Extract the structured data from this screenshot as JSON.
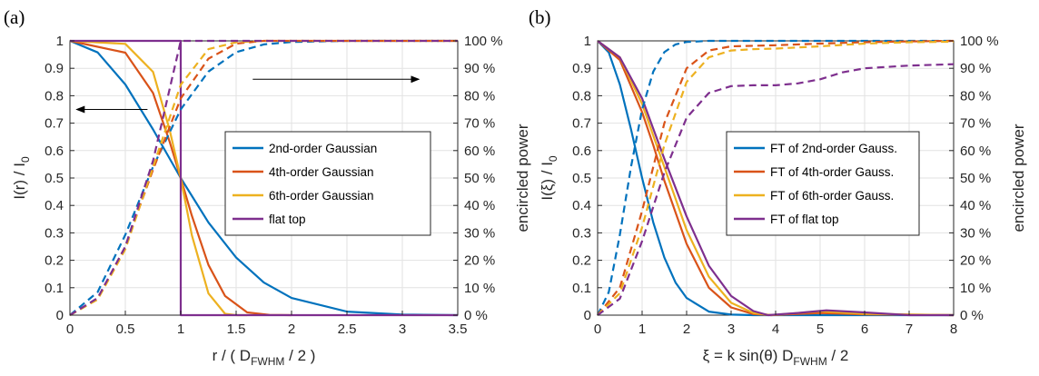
{
  "chart_data": [
    {
      "panel_label": "(a)",
      "type": "line",
      "xlabel": "r / ( D",
      "xlabel_sub": "FWHM",
      "xlabel_tail": " / 2 )",
      "ylabel": "I(r) / I",
      "ylabel_sub": "0",
      "y2label": "encircled power",
      "xlim": [
        0,
        3.5
      ],
      "ylim": [
        0,
        1
      ],
      "y2lim": [
        0,
        100
      ],
      "xticks": [
        "0",
        "0.5",
        "1",
        "1.5",
        "2",
        "2.5",
        "3",
        "3.5"
      ],
      "yticks": [
        "0",
        "0.1",
        "0.2",
        "0.3",
        "0.4",
        "0.5",
        "0.6",
        "0.7",
        "0.8",
        "0.9",
        "1"
      ],
      "y2ticks": [
        "0 %",
        "10 %",
        "20 %",
        "30 %",
        "40 %",
        "50 %",
        "60 %",
        "70 %",
        "80 %",
        "90 %",
        "100 %"
      ],
      "grid": true,
      "legend_position": "center-right",
      "annotations": [
        "arrow pointing left (intensity axis)",
        "arrow pointing right (encircled power axis)"
      ],
      "series": [
        {
          "name": "2nd-order Gaussian",
          "color": "#0072BD",
          "style": "solid",
          "x": [
            0,
            0.25,
            0.5,
            0.75,
            1.0,
            1.25,
            1.5,
            1.75,
            2.0,
            2.5,
            3.0,
            3.5
          ],
          "y": [
            1.0,
            0.958,
            0.841,
            0.677,
            0.5,
            0.338,
            0.21,
            0.119,
            0.0625,
            0.013,
            0.002,
            0.0
          ]
        },
        {
          "name": "4th-order Gaussian",
          "color": "#D95319",
          "style": "solid",
          "x": [
            0,
            0.5,
            0.75,
            0.9,
            1.0,
            1.1,
            1.25,
            1.4,
            1.6,
            1.8,
            2.0
          ],
          "y": [
            1.0,
            0.957,
            0.81,
            0.632,
            0.5,
            0.363,
            0.183,
            0.07,
            0.01,
            0.001,
            0.0
          ]
        },
        {
          "name": "6th-order Gaussian",
          "color": "#EDB120",
          "style": "solid",
          "x": [
            0,
            0.5,
            0.75,
            0.9,
            1.0,
            1.1,
            1.25,
            1.4,
            1.5,
            1.6
          ],
          "y": [
            1.0,
            0.989,
            0.887,
            0.675,
            0.5,
            0.292,
            0.079,
            0.005,
            0.0,
            0.0
          ]
        },
        {
          "name": "flat top",
          "color": "#7E2F8E",
          "style": "solid",
          "x": [
            0,
            1.0,
            1.0,
            3.5
          ],
          "y": [
            1.0,
            1.0,
            0.0,
            0.0
          ]
        },
        {
          "name": "",
          "color": "#0072BD",
          "style": "dashed",
          "x": [
            0,
            0.25,
            0.5,
            0.75,
            1.0,
            1.25,
            1.5,
            1.75,
            2.0,
            2.5,
            3.0,
            3.5
          ],
          "y": [
            0,
            0.084,
            0.293,
            0.541,
            0.75,
            0.888,
            0.959,
            0.987,
            0.996,
            1.0,
            1.0,
            1.0
          ]
        },
        {
          "name": "",
          "color": "#D95319",
          "style": "dashed",
          "x": [
            0,
            0.25,
            0.5,
            0.75,
            1.0,
            1.25,
            1.5,
            1.75,
            2.0,
            3.5
          ],
          "y": [
            0,
            0.06,
            0.25,
            0.53,
            0.79,
            0.935,
            0.99,
            1.0,
            1.0,
            1.0
          ]
        },
        {
          "name": "",
          "color": "#EDB120",
          "style": "dashed",
          "x": [
            0,
            0.25,
            0.5,
            0.75,
            1.0,
            1.25,
            1.5,
            1.75,
            3.5
          ],
          "y": [
            0,
            0.057,
            0.24,
            0.54,
            0.84,
            0.97,
            0.995,
            1.0,
            1.0
          ]
        },
        {
          "name": "",
          "color": "#7E2F8E",
          "style": "dashed",
          "x": [
            0,
            0.25,
            0.5,
            0.75,
            1.0,
            1.25,
            3.5
          ],
          "y": [
            0,
            0.0625,
            0.25,
            0.5625,
            1.0,
            1.0,
            1.0
          ]
        }
      ]
    },
    {
      "panel_label": "(b)",
      "type": "line",
      "xlabel": "ξ = k sin(θ) D",
      "xlabel_sub": "FWHM",
      "xlabel_tail": " / 2",
      "ylabel": "I(ξ) / I",
      "ylabel_sub": "0",
      "y2label": "encircled power",
      "xlim": [
        0,
        8
      ],
      "ylim": [
        0,
        1
      ],
      "y2lim": [
        0,
        100
      ],
      "xticks": [
        "0",
        "1",
        "2",
        "3",
        "4",
        "5",
        "6",
        "7",
        "8"
      ],
      "yticks": [
        "0",
        "0.1",
        "0.2",
        "0.3",
        "0.4",
        "0.5",
        "0.6",
        "0.7",
        "0.8",
        "0.9",
        "1"
      ],
      "y2ticks": [
        "0 %",
        "10 %",
        "20 %",
        "30 %",
        "40 %",
        "50 %",
        "60 %",
        "70 %",
        "80 %",
        "90 %",
        "100 %"
      ],
      "grid": true,
      "legend_position": "center-right",
      "series": [
        {
          "name": "FT of 2nd-order Gauss.",
          "color": "#0072BD",
          "style": "solid",
          "x": [
            0,
            0.25,
            0.5,
            0.75,
            1.0,
            1.25,
            1.5,
            1.75,
            2.0,
            2.5,
            3.0,
            3.5,
            8
          ],
          "y": [
            1.0,
            0.958,
            0.841,
            0.677,
            0.5,
            0.338,
            0.21,
            0.119,
            0.0625,
            0.013,
            0.002,
            0.0,
            0.0
          ]
        },
        {
          "name": "FT of 4th-order Gauss.",
          "color": "#D95319",
          "style": "solid",
          "x": [
            0,
            0.5,
            1.0,
            1.25,
            1.5,
            2.0,
            2.5,
            3.0,
            3.5,
            3.9,
            5.0,
            6.0,
            8
          ],
          "y": [
            1.0,
            0.93,
            0.74,
            0.62,
            0.49,
            0.26,
            0.1,
            0.028,
            0.004,
            0.0,
            0.008,
            0.003,
            0.0
          ]
        },
        {
          "name": "FT of 6th-order Gauss.",
          "color": "#EDB120",
          "style": "solid",
          "x": [
            0,
            0.5,
            1.0,
            1.5,
            2.0,
            2.5,
            3.0,
            3.5,
            3.9,
            5.0,
            6.0,
            8
          ],
          "y": [
            1.0,
            0.94,
            0.77,
            0.54,
            0.31,
            0.14,
            0.045,
            0.008,
            0.0,
            0.014,
            0.005,
            0.0
          ]
        },
        {
          "name": "FT of flat top",
          "color": "#7E2F8E",
          "style": "solid",
          "x": [
            0,
            0.5,
            1.0,
            1.5,
            2.0,
            2.5,
            3.0,
            3.5,
            3.83,
            4.5,
            5.14,
            6.0,
            7.0,
            8
          ],
          "y": [
            1.0,
            0.94,
            0.79,
            0.57,
            0.36,
            0.18,
            0.07,
            0.015,
            0.0,
            0.008,
            0.0175,
            0.01,
            0.0,
            0.0
          ]
        },
        {
          "name": "",
          "color": "#0072BD",
          "style": "dashed",
          "x": [
            0,
            0.25,
            0.5,
            0.75,
            1.0,
            1.25,
            1.5,
            1.75,
            2.0,
            2.5,
            3.0,
            3.5,
            8
          ],
          "y": [
            0,
            0.084,
            0.293,
            0.541,
            0.75,
            0.888,
            0.959,
            0.987,
            0.996,
            1.0,
            1.0,
            1.0,
            1.0
          ]
        },
        {
          "name": "",
          "color": "#D95319",
          "style": "dashed",
          "x": [
            0,
            0.5,
            1.0,
            1.5,
            2.0,
            2.5,
            3.0,
            3.5,
            4.0,
            5.0,
            6.0,
            7.0,
            8
          ],
          "y": [
            0,
            0.1,
            0.38,
            0.7,
            0.9,
            0.965,
            0.98,
            0.982,
            0.984,
            0.99,
            0.995,
            0.998,
            1.0
          ]
        },
        {
          "name": "",
          "color": "#EDB120",
          "style": "dashed",
          "x": [
            0,
            0.5,
            1.0,
            1.5,
            2.0,
            2.5,
            3.0,
            3.5,
            4.0,
            5.0,
            6.0,
            7.0,
            8
          ],
          "y": [
            0,
            0.08,
            0.32,
            0.62,
            0.85,
            0.94,
            0.965,
            0.97,
            0.972,
            0.98,
            0.99,
            0.995,
            0.997
          ]
        },
        {
          "name": "",
          "color": "#7E2F8E",
          "style": "dashed",
          "x": [
            0,
            0.5,
            1.0,
            1.5,
            2.0,
            2.5,
            3.0,
            3.5,
            4.0,
            4.5,
            5.0,
            5.5,
            6.0,
            7.0,
            8
          ],
          "y": [
            0,
            0.06,
            0.27,
            0.52,
            0.72,
            0.81,
            0.835,
            0.838,
            0.838,
            0.845,
            0.86,
            0.885,
            0.9,
            0.91,
            0.915
          ]
        }
      ]
    }
  ]
}
